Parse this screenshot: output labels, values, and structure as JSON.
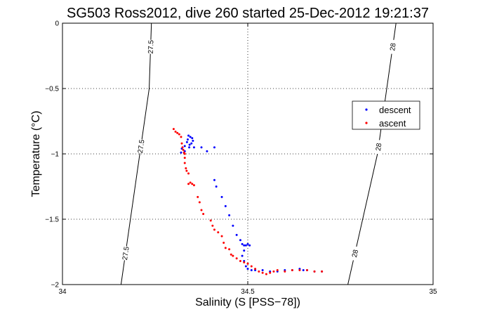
{
  "chart_data": {
    "type": "scatter",
    "title": "SG503 Ross2012, dive 260 started 25-Dec-2012 19:21:37",
    "xlabel": "Salinity (S [PSS−78])",
    "ylabel": "Temperature (°C)",
    "xlim": [
      34,
      35
    ],
    "ylim": [
      -2,
      0
    ],
    "xticks": [
      34,
      34.5,
      35
    ],
    "xtick_labels": [
      "34",
      "34.5",
      "35"
    ],
    "yticks": [
      0,
      -0.5,
      -1,
      -1.5,
      -2
    ],
    "ytick_labels": [
      "0",
      "−0.5",
      "−1",
      "−1.5",
      "−2"
    ],
    "grid": true,
    "legend": {
      "placement": "right",
      "entries": [
        "descent",
        "ascent"
      ]
    },
    "contours": [
      {
        "label": "27.5",
        "points": [
          [
            34.158,
            -2.0
          ],
          [
            34.234,
            -0.5
          ],
          [
            34.24,
            0.0
          ]
        ]
      },
      {
        "label": "28",
        "points": [
          [
            34.77,
            -2.0
          ],
          [
            34.85,
            -1.0
          ],
          [
            34.9,
            0.0
          ]
        ]
      }
    ],
    "series": [
      {
        "name": "descent",
        "color": "#0000ff",
        "points": [
          [
            34.34,
            -0.86
          ],
          [
            34.345,
            -0.87
          ],
          [
            34.35,
            -0.88
          ],
          [
            34.352,
            -0.9
          ],
          [
            34.348,
            -0.92
          ],
          [
            34.343,
            -0.93
          ],
          [
            34.338,
            -0.89
          ],
          [
            34.336,
            -0.91
          ],
          [
            34.342,
            -0.95
          ],
          [
            34.33,
            -0.94
          ],
          [
            34.322,
            -0.96
          ],
          [
            34.32,
            -0.99
          ],
          [
            34.33,
            -0.98
          ],
          [
            34.355,
            -0.95
          ],
          [
            34.375,
            -0.95
          ],
          [
            34.39,
            -0.98
          ],
          [
            34.41,
            -0.95
          ],
          [
            34.41,
            -1.2
          ],
          [
            34.415,
            -1.25
          ],
          [
            34.43,
            -1.33
          ],
          [
            34.44,
            -1.4
          ],
          [
            34.45,
            -1.47
          ],
          [
            34.46,
            -1.55
          ],
          [
            34.47,
            -1.62
          ],
          [
            34.48,
            -1.66
          ],
          [
            34.485,
            -1.69
          ],
          [
            34.49,
            -1.7
          ],
          [
            34.495,
            -1.7
          ],
          [
            34.5,
            -1.69
          ],
          [
            34.505,
            -1.7
          ],
          [
            34.49,
            -1.74
          ],
          [
            34.485,
            -1.78
          ],
          [
            34.49,
            -1.82
          ],
          [
            34.495,
            -1.86
          ],
          [
            34.5,
            -1.88
          ],
          [
            34.51,
            -1.89
          ],
          [
            34.52,
            -1.89
          ],
          [
            34.54,
            -1.89
          ],
          [
            34.56,
            -1.9
          ],
          [
            34.58,
            -1.9
          ],
          [
            34.6,
            -1.89
          ],
          [
            34.62,
            -1.89
          ],
          [
            34.64,
            -1.88
          ],
          [
            34.65,
            -1.89
          ],
          [
            34.66,
            -1.89
          ],
          [
            34.68,
            -1.9
          ],
          [
            34.7,
            -1.9
          ]
        ]
      },
      {
        "name": "ascent",
        "color": "#ff0000",
        "points": [
          [
            34.3,
            -0.81
          ],
          [
            34.305,
            -0.83
          ],
          [
            34.31,
            -0.84
          ],
          [
            34.315,
            -0.85
          ],
          [
            34.32,
            -0.87
          ],
          [
            34.322,
            -0.92
          ],
          [
            34.324,
            -0.95
          ],
          [
            34.326,
            -0.97
          ],
          [
            34.328,
            -0.99
          ],
          [
            34.33,
            -1.0
          ],
          [
            34.33,
            -1.03
          ],
          [
            34.33,
            -1.07
          ],
          [
            34.333,
            -1.11
          ],
          [
            34.335,
            -1.13
          ],
          [
            34.34,
            -1.15
          ],
          [
            34.34,
            -1.23
          ],
          [
            34.345,
            -1.22
          ],
          [
            34.35,
            -1.23
          ],
          [
            34.355,
            -1.24
          ],
          [
            34.365,
            -1.33
          ],
          [
            34.37,
            -1.37
          ],
          [
            34.375,
            -1.43
          ],
          [
            34.38,
            -1.46
          ],
          [
            34.4,
            -1.51
          ],
          [
            34.405,
            -1.55
          ],
          [
            34.41,
            -1.58
          ],
          [
            34.42,
            -1.6
          ],
          [
            34.43,
            -1.63
          ],
          [
            34.435,
            -1.68
          ],
          [
            34.44,
            -1.72
          ],
          [
            34.45,
            -1.73
          ],
          [
            34.455,
            -1.77
          ],
          [
            34.46,
            -1.78
          ],
          [
            34.47,
            -1.8
          ],
          [
            34.48,
            -1.82
          ],
          [
            34.49,
            -1.83
          ],
          [
            34.5,
            -1.84
          ],
          [
            34.51,
            -1.86
          ],
          [
            34.52,
            -1.88
          ],
          [
            34.53,
            -1.9
          ],
          [
            34.54,
            -1.91
          ],
          [
            34.55,
            -1.92
          ],
          [
            34.56,
            -1.91
          ],
          [
            34.57,
            -1.9
          ],
          [
            34.58,
            -1.89
          ],
          [
            34.6,
            -1.9
          ],
          [
            34.62,
            -1.89
          ],
          [
            34.64,
            -1.89
          ],
          [
            34.66,
            -1.89
          ],
          [
            34.68,
            -1.9
          ],
          [
            34.7,
            -1.9
          ]
        ]
      }
    ]
  }
}
